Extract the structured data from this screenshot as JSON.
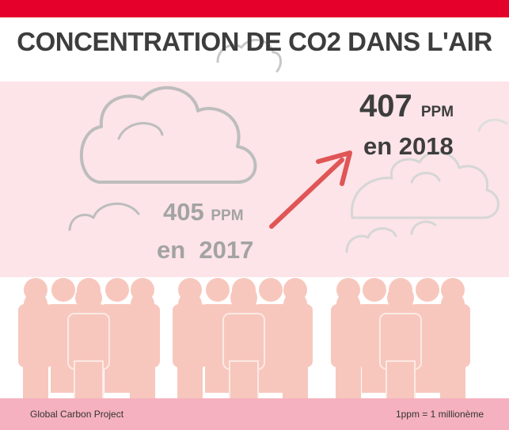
{
  "title": "CONCENTRATION DE CO2 DANS L'AIR",
  "reading_2017": {
    "value": "405",
    "unit": "PPM",
    "year_label": "en  2017"
  },
  "reading_2018": {
    "value": "407",
    "unit": "PPM",
    "year_label": "en 2018"
  },
  "footer": {
    "source": "Global Carbon Project",
    "note": "1ppm = 1 millionème"
  },
  "colors": {
    "accent": "#e4002b",
    "band": "#fce4e8",
    "people": "#f7c7bd",
    "arrow": "#e05555",
    "footer": "#f5b1bf"
  },
  "icons": [
    "cloud-icon",
    "arrow-icon",
    "person-icon"
  ]
}
